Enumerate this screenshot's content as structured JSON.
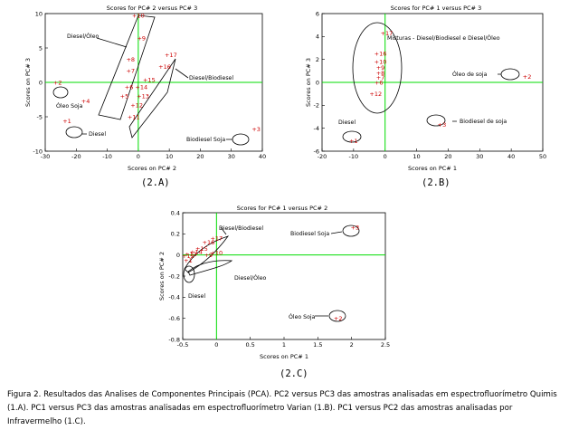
{
  "figures": {
    "a": {
      "subcaption": "(2.A)"
    },
    "b": {
      "subcaption": "(2.B)"
    },
    "c": {
      "subcaption": "(2.C)"
    }
  },
  "caption": "Figura 2. Resultados das Analises de Componentes Principais (PCA). PC2 versus PC3 das amostras analisadas em espectrofluorímetro Quimis (1.A). PC1 versus PC3 das amostras analisadas em espectrofluorímetro Varian (1.B). PC1 versus PC2 das amostras analisadas por Infravermelho (1.C).",
  "colors": {
    "points": "#cc0000",
    "refline": "#00dd00",
    "frame": "#000000"
  },
  "chart_data": [
    {
      "id": "a",
      "type": "scatter",
      "title": "Scores for PC# 2 versus PC# 3",
      "xlabel": "Scores on PC# 2",
      "ylabel": "Scores on PC# 3",
      "xlim": [
        -30,
        40
      ],
      "ylim": [
        -10,
        10
      ],
      "xticks": [
        -30,
        -20,
        -10,
        0,
        10,
        20,
        30,
        40
      ],
      "yticks": [
        -10,
        -5,
        0,
        5,
        10
      ],
      "reference_lines": {
        "x": 0,
        "y": 0
      },
      "points": [
        {
          "label": "+10",
          "x": 0,
          "y": 9.7
        },
        {
          "label": "+9",
          "x": 1,
          "y": 6.4
        },
        {
          "label": "+8",
          "x": -2.5,
          "y": 3.3
        },
        {
          "label": "+7",
          "x": -2.5,
          "y": 1.7
        },
        {
          "label": "+16",
          "x": 8.5,
          "y": 2.3
        },
        {
          "label": "+17",
          "x": 10.5,
          "y": 4.0
        },
        {
          "label": "+15",
          "x": 3.5,
          "y": 0.4
        },
        {
          "label": "+14",
          "x": 1,
          "y": -0.7
        },
        {
          "label": "+6",
          "x": -3,
          "y": -0.7
        },
        {
          "label": "+5",
          "x": -4.5,
          "y": -2.0
        },
        {
          "label": "+13",
          "x": 1.5,
          "y": -2.0
        },
        {
          "label": "+12",
          "x": -0.5,
          "y": -3.3
        },
        {
          "label": "+11",
          "x": -1.5,
          "y": -5.0
        },
        {
          "label": "+4",
          "x": -17,
          "y": -2.7
        },
        {
          "label": "+3",
          "x": 38,
          "y": -6.8
        },
        {
          "label": "+2",
          "x": -26,
          "y": 0
        },
        {
          "label": "+1",
          "x": -23,
          "y": -5.6
        }
      ],
      "annotations": [
        "Diesel/Óleo",
        "Diesel/Biodiesel",
        "Óleo Soja",
        "Diesel",
        "Biodiesel Soja"
      ]
    },
    {
      "id": "b",
      "type": "scatter",
      "title": "Scores for PC# 1 versus PC# 3",
      "xlabel": "Scores on PC# 1",
      "ylabel": "Scores on PC# 3",
      "xlim": [
        -20,
        50
      ],
      "ylim": [
        -6,
        6
      ],
      "xticks": [
        -20,
        -10,
        0,
        10,
        20,
        30,
        40,
        50
      ],
      "yticks": [
        -6,
        -4,
        -2,
        0,
        2,
        4,
        6
      ],
      "reference_lines": {
        "x": 0,
        "y": 0
      },
      "points": [
        {
          "label": "+17",
          "x": 0.5,
          "y": 4.3
        },
        {
          "label": "+16",
          "x": -1.5,
          "y": 2.5
        },
        {
          "label": "+10",
          "x": -1.5,
          "y": 1.8
        },
        {
          "label": "+9",
          "x": -1.5,
          "y": 1.3
        },
        {
          "label": "+8",
          "x": -1.5,
          "y": 0.8
        },
        {
          "label": "+7",
          "x": -1.5,
          "y": 0.4
        },
        {
          "label": "+6",
          "x": -2,
          "y": 0
        },
        {
          "label": "+12",
          "x": -3,
          "y": -1.0
        },
        {
          "label": "+2",
          "x": 45,
          "y": 0.5
        },
        {
          "label": "+3",
          "x": 18,
          "y": -3.7
        },
        {
          "label": "+1",
          "x": -10,
          "y": -5.1
        }
      ],
      "annotations": [
        "Misturas - Diesel/Biodiesel e Diesel/Óleo",
        "Óleo de soja",
        "Biodiesel de soja",
        "Diesel"
      ]
    },
    {
      "id": "c",
      "type": "scatter",
      "title": "Scores for PC# 1 versus PC# 2",
      "xlabel": "Scores on PC# 1",
      "ylabel": "Scores on PC# 2",
      "xlim": [
        -0.5,
        2.5
      ],
      "ylim": [
        -0.8,
        0.4
      ],
      "xticks": [
        -0.5,
        0,
        0.5,
        1,
        1.5,
        2,
        2.5
      ],
      "yticks": [
        -0.8,
        -0.6,
        -0.4,
        -0.2,
        0,
        0.2,
        0.4
      ],
      "reference_lines": {
        "x": 0,
        "y": 0
      },
      "points": [
        {
          "label": "+17",
          "x": 0,
          "y": 0.16
        },
        {
          "label": "+16",
          "x": -0.12,
          "y": 0.12
        },
        {
          "label": "+15",
          "x": -0.22,
          "y": 0.06
        },
        {
          "label": "+14",
          "x": -0.3,
          "y": 0.03
        },
        {
          "label": "+13",
          "x": -0.38,
          "y": 0.01
        },
        {
          "label": "+12",
          "x": -0.42,
          "y": -0.01
        },
        {
          "label": "+10",
          "x": 0,
          "y": 0.02
        },
        {
          "label": "+9",
          "x": -0.12,
          "y": 0
        },
        {
          "label": "+3",
          "x": 2.05,
          "y": 0.26
        },
        {
          "label": "+2",
          "x": 1.8,
          "y": -0.6
        },
        {
          "label": "+1",
          "x": -0.42,
          "y": -0.05
        }
      ],
      "annotations": [
        "Diesel/Biodiesel",
        "Biodiesel Soja",
        "Diesel/Óleo",
        "Diesel",
        "Óleo Soja"
      ]
    }
  ]
}
